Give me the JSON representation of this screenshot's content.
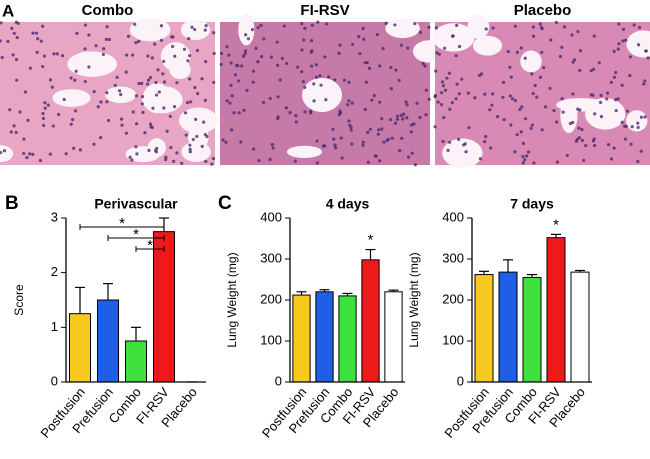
{
  "panel_a": {
    "label": "A",
    "images": [
      {
        "title": "Combo"
      },
      {
        "title": "FI-RSV"
      },
      {
        "title": "Placebo"
      }
    ]
  },
  "chart_data": [
    {
      "type": "bar",
      "panel_label": "B",
      "title": "Perivascular",
      "y_label": "Score",
      "categories": [
        "Postfusion",
        "Prefusion",
        "Combo",
        "FI-RSV",
        "Placebo"
      ],
      "values": [
        1.25,
        1.5,
        0.75,
        2.75,
        0
      ],
      "errors": [
        0.48,
        0.3,
        0.25,
        0.25,
        0
      ],
      "colors": [
        "#f7c81e",
        "#1f5ee6",
        "#3ee03e",
        "#ee1a1a",
        "#ffffff"
      ],
      "ylim": [
        0,
        3
      ],
      "yticks": [
        0,
        1,
        2,
        3
      ],
      "significance": [
        {
          "text": "*",
          "between": [
            "Postfusion",
            "FI-RSV"
          ]
        },
        {
          "text": "*",
          "between": [
            "Prefusion",
            "FI-RSV"
          ]
        },
        {
          "text": "*",
          "between": [
            "Combo",
            "FI-RSV"
          ]
        }
      ]
    },
    {
      "type": "bar",
      "panel_label": "C",
      "title": "4 days",
      "y_label": "Lung Weight (mg)",
      "categories": [
        "Postfusion",
        "Prefusion",
        "Combo",
        "FI-RSV",
        "Placebo"
      ],
      "values": [
        212,
        220,
        210,
        298,
        220
      ],
      "errors": [
        8,
        5,
        6,
        25,
        4
      ],
      "colors": [
        "#f7c81e",
        "#1f5ee6",
        "#3ee03e",
        "#ee1a1a",
        "#ffffff"
      ],
      "ylim": [
        0,
        400
      ],
      "yticks": [
        0,
        100,
        200,
        300,
        400
      ],
      "stars": [
        {
          "text": "*",
          "category": "FI-RSV"
        }
      ]
    },
    {
      "type": "bar",
      "title": "7 days",
      "y_label": "Lung Weight (mg)",
      "categories": [
        "Postfusion",
        "Prefusion",
        "Combo",
        "FI-RSV",
        "Placebo"
      ],
      "values": [
        262,
        268,
        255,
        352,
        268
      ],
      "errors": [
        8,
        30,
        7,
        8,
        4
      ],
      "colors": [
        "#f7c81e",
        "#1f5ee6",
        "#3ee03e",
        "#ee1a1a",
        "#ffffff"
      ],
      "ylim": [
        0,
        400
      ],
      "yticks": [
        0,
        100,
        200,
        300,
        400
      ],
      "stars": [
        {
          "text": "*",
          "category": "FI-RSV"
        }
      ]
    }
  ]
}
